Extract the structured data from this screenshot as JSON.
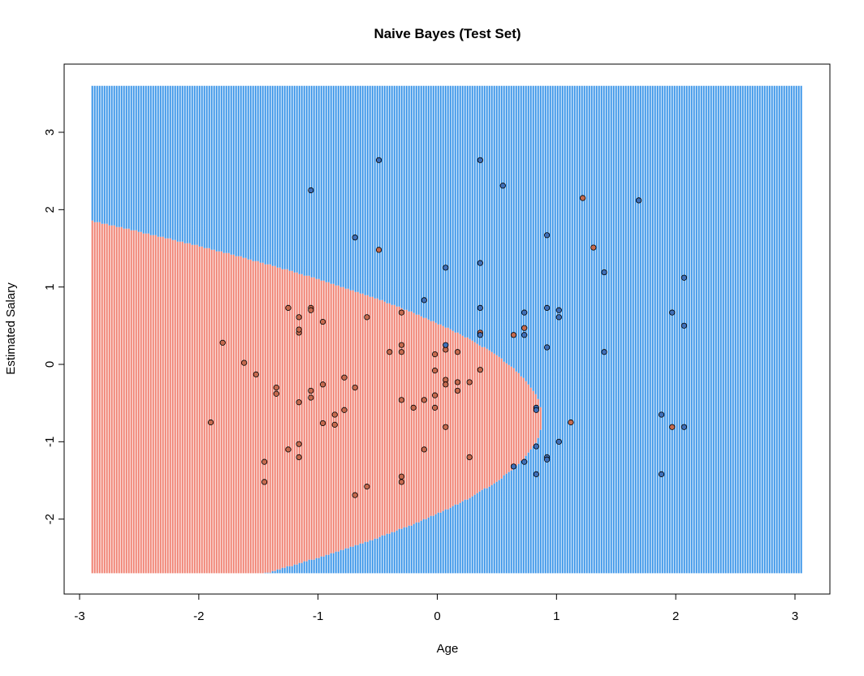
{
  "chart_data": {
    "type": "scatter",
    "title": "Naive Bayes (Test Set)",
    "xlabel": "Age",
    "ylabel": "Estimated Salary",
    "xlim": [
      -3.0,
      3.0
    ],
    "ylim": [
      -2.7,
      3.6
    ],
    "xticks": [
      -3,
      -2,
      -1,
      0,
      1,
      2,
      3
    ],
    "yticks": [
      -2,
      -1,
      0,
      1,
      2,
      3
    ],
    "grid": false,
    "background": {
      "description_free": true,
      "grid_x_range": [
        -2.9,
        3.05
      ],
      "grid_y_range": [
        -2.7,
        3.6
      ],
      "class0_color": "#f08070",
      "class1_color": "#3a95e8",
      "boundary": {
        "vertex_x": 0.88,
        "vertex_y": -0.7,
        "shape_a": 0.58
      }
    },
    "point_colors": {
      "0": "#c56a4e",
      "1": "#3f6fb8"
    },
    "series": [
      {
        "class": 0,
        "points": [
          [
            -1.9,
            -0.75
          ],
          [
            -1.8,
            0.28
          ],
          [
            -1.62,
            0.02
          ],
          [
            -1.52,
            -0.13
          ],
          [
            -1.45,
            -1.26
          ],
          [
            -1.45,
            -1.52
          ],
          [
            -1.35,
            -0.3
          ],
          [
            -1.35,
            -0.38
          ],
          [
            -1.25,
            0.73
          ],
          [
            -1.25,
            -1.1
          ],
          [
            -1.16,
            0.61
          ],
          [
            -1.16,
            0.41
          ],
          [
            -1.16,
            0.45
          ],
          [
            -1.16,
            -0.49
          ],
          [
            -1.16,
            -1.03
          ],
          [
            -1.16,
            -1.2
          ],
          [
            -1.06,
            0.73
          ],
          [
            -1.06,
            0.7
          ],
          [
            -1.06,
            -0.34
          ],
          [
            -1.06,
            -0.43
          ],
          [
            -0.96,
            0.55
          ],
          [
            -0.96,
            -0.26
          ],
          [
            -0.96,
            -0.76
          ],
          [
            -0.86,
            -0.65
          ],
          [
            -0.86,
            -0.78
          ],
          [
            -0.78,
            -0.17
          ],
          [
            -0.78,
            -0.59
          ],
          [
            -0.69,
            -0.3
          ],
          [
            -0.69,
            -1.69
          ],
          [
            -0.59,
            0.61
          ],
          [
            -0.59,
            -1.58
          ],
          [
            -0.49,
            1.48
          ],
          [
            -0.4,
            0.16
          ],
          [
            -0.3,
            0.67
          ],
          [
            -0.3,
            0.25
          ],
          [
            -0.3,
            0.16
          ],
          [
            -0.3,
            -0.46
          ],
          [
            -0.3,
            -1.45
          ],
          [
            -0.3,
            -1.52
          ],
          [
            -0.2,
            -0.56
          ],
          [
            -0.11,
            -0.46
          ],
          [
            -0.11,
            -1.1
          ],
          [
            -0.02,
            0.13
          ],
          [
            -0.02,
            -0.08
          ],
          [
            -0.02,
            -0.4
          ],
          [
            -0.02,
            -0.56
          ],
          [
            0.07,
            0.19
          ],
          [
            0.07,
            -0.2
          ],
          [
            0.07,
            -0.26
          ],
          [
            0.07,
            -0.81
          ],
          [
            0.17,
            0.16
          ],
          [
            0.17,
            -0.23
          ],
          [
            0.17,
            -0.34
          ],
          [
            0.27,
            -0.23
          ],
          [
            0.27,
            -1.2
          ],
          [
            0.36,
            0.41
          ],
          [
            0.36,
            -0.07
          ],
          [
            0.64,
            0.38
          ],
          [
            0.73,
            0.47
          ],
          [
            1.12,
            -0.75
          ],
          [
            1.22,
            2.15
          ],
          [
            1.31,
            1.51
          ],
          [
            1.97,
            -0.81
          ]
        ]
      },
      {
        "class": 1,
        "points": [
          [
            -1.06,
            2.25
          ],
          [
            -0.69,
            1.64
          ],
          [
            -0.49,
            2.64
          ],
          [
            -0.11,
            0.83
          ],
          [
            0.07,
            1.25
          ],
          [
            0.07,
            0.25
          ],
          [
            0.36,
            2.64
          ],
          [
            0.36,
            1.31
          ],
          [
            0.36,
            0.73
          ],
          [
            0.36,
            0.38
          ],
          [
            0.55,
            2.31
          ],
          [
            0.64,
            -1.32
          ],
          [
            0.73,
            0.67
          ],
          [
            0.73,
            0.38
          ],
          [
            0.73,
            -1.26
          ],
          [
            0.83,
            -0.56
          ],
          [
            0.83,
            -0.59
          ],
          [
            0.83,
            -1.06
          ],
          [
            0.83,
            -1.42
          ],
          [
            0.92,
            1.67
          ],
          [
            0.92,
            0.73
          ],
          [
            0.92,
            0.22
          ],
          [
            0.92,
            -1.2
          ],
          [
            0.92,
            -1.23
          ],
          [
            1.02,
            0.7
          ],
          [
            1.02,
            0.61
          ],
          [
            1.02,
            -1.0
          ],
          [
            1.4,
            1.19
          ],
          [
            1.4,
            0.16
          ],
          [
            1.69,
            2.12
          ],
          [
            1.88,
            -0.65
          ],
          [
            1.88,
            -1.42
          ],
          [
            1.97,
            0.67
          ],
          [
            2.07,
            1.12
          ],
          [
            2.07,
            0.5
          ],
          [
            2.07,
            -0.81
          ]
        ]
      }
    ]
  }
}
